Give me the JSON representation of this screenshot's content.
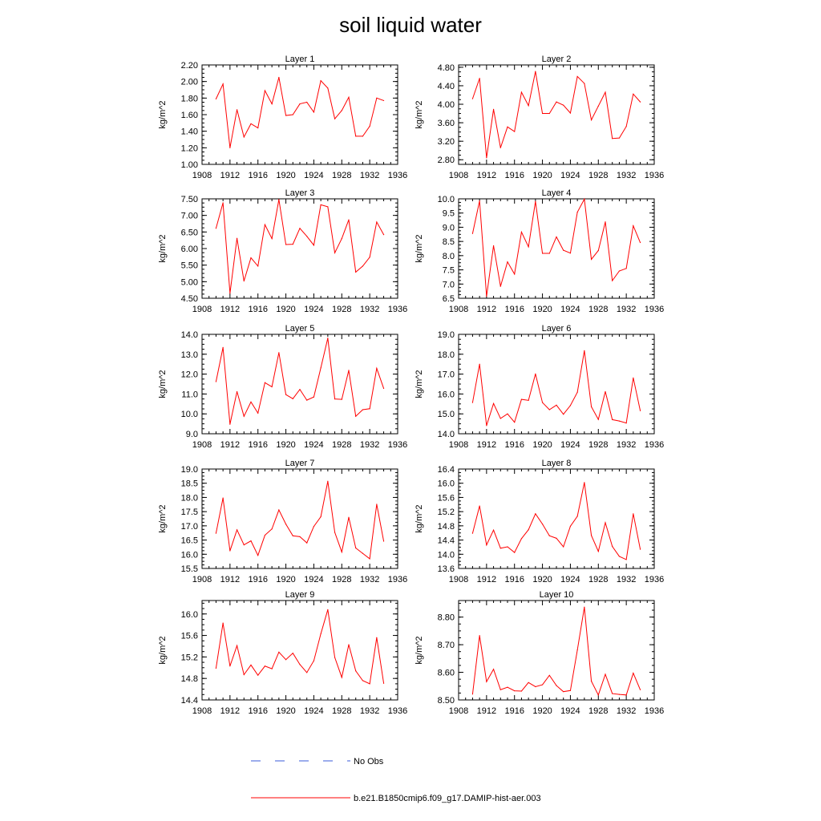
{
  "title": "soil liquid water",
  "legend": [
    {
      "label": "No Obs",
      "color": "#3a5bd9",
      "dash": "12,18"
    },
    {
      "label": "b.e21.B1850cmip6.f09_g17.DAMIP-hist-aer.003",
      "color": "#ff0000",
      "dash": ""
    }
  ],
  "chart_data": [
    {
      "type": "line",
      "title": "Layer 1",
      "xlabel": "",
      "ylabel": "kg/m^2",
      "xlim": [
        1908,
        1936
      ],
      "ylim": [
        1.0,
        2.2
      ],
      "xticks": [
        "1908",
        "1912",
        "1916",
        "1920",
        "1924",
        "1928",
        "1932",
        "1936"
      ],
      "yticks": [
        "1.00",
        "1.20",
        "1.40",
        "1.60",
        "1.80",
        "2.00",
        "2.20"
      ],
      "series": [
        {
          "color": "#ff0000",
          "x": [
            1910,
            1911,
            1912,
            1913,
            1914,
            1915,
            1916,
            1917,
            1918,
            1919,
            1920,
            1921,
            1922,
            1923,
            1924,
            1925,
            1926,
            1927,
            1928,
            1929,
            1930,
            1931,
            1932,
            1933,
            1934
          ],
          "values": [
            1.79,
            1.97,
            1.2,
            1.66,
            1.33,
            1.49,
            1.44,
            1.89,
            1.73,
            2.05,
            1.59,
            1.6,
            1.73,
            1.75,
            1.63,
            2.01,
            1.92,
            1.55,
            1.65,
            1.81,
            1.34,
            1.34,
            1.46,
            1.8,
            1.77
          ]
        }
      ]
    },
    {
      "type": "line",
      "title": "Layer 2",
      "xlabel": "",
      "ylabel": "kg/m^2",
      "xlim": [
        1908,
        1936
      ],
      "ylim": [
        2.7,
        4.85
      ],
      "xticks": [
        "1908",
        "1912",
        "1916",
        "1920",
        "1924",
        "1928",
        "1932",
        "1936"
      ],
      "yticks": [
        "2.80",
        "3.20",
        "3.60",
        "4.00",
        "4.40",
        "4.80"
      ],
      "series": [
        {
          "color": "#ff0000",
          "x": [
            1910,
            1911,
            1912,
            1913,
            1914,
            1915,
            1916,
            1917,
            1918,
            1919,
            1920,
            1921,
            1922,
            1923,
            1924,
            1925,
            1926,
            1927,
            1928,
            1929,
            1930,
            1931,
            1932,
            1933,
            1934
          ],
          "values": [
            4.12,
            4.56,
            2.84,
            3.89,
            3.06,
            3.51,
            3.41,
            4.26,
            3.97,
            4.71,
            3.8,
            3.8,
            4.05,
            3.98,
            3.81,
            4.6,
            4.45,
            3.66,
            3.96,
            4.26,
            3.26,
            3.27,
            3.52,
            4.22,
            4.05
          ]
        }
      ]
    },
    {
      "type": "line",
      "title": "Layer 3",
      "xlabel": "",
      "ylabel": "kg/m^2",
      "xlim": [
        1908,
        1936
      ],
      "ylim": [
        4.5,
        7.5
      ],
      "xticks": [
        "1908",
        "1912",
        "1916",
        "1920",
        "1924",
        "1928",
        "1932",
        "1936"
      ],
      "yticks": [
        "4.50",
        "5.00",
        "5.50",
        "6.00",
        "6.50",
        "7.00",
        "7.50"
      ],
      "series": [
        {
          "color": "#ff0000",
          "x": [
            1910,
            1911,
            1912,
            1913,
            1914,
            1915,
            1916,
            1917,
            1918,
            1919,
            1920,
            1921,
            1922,
            1923,
            1924,
            1925,
            1926,
            1927,
            1928,
            1929,
            1930,
            1931,
            1932,
            1933,
            1934
          ],
          "values": [
            6.61,
            7.38,
            4.65,
            6.31,
            5.02,
            5.72,
            5.47,
            6.72,
            6.3,
            7.48,
            6.12,
            6.13,
            6.61,
            6.37,
            6.1,
            7.32,
            7.26,
            5.87,
            6.3,
            6.87,
            5.29,
            5.47,
            5.74,
            6.8,
            6.42
          ]
        }
      ]
    },
    {
      "type": "line",
      "title": "Layer 4",
      "xlabel": "",
      "ylabel": "kg/m^2",
      "xlim": [
        1908,
        1936
      ],
      "ylim": [
        6.5,
        10.0
      ],
      "xticks": [
        "1908",
        "1912",
        "1916",
        "1920",
        "1924",
        "1928",
        "1932",
        "1936"
      ],
      "yticks": [
        "6.5",
        "7.0",
        "7.5",
        "8.0",
        "8.5",
        "9.0",
        "9.5",
        "10.0"
      ],
      "series": [
        {
          "color": "#ff0000",
          "x": [
            1910,
            1911,
            1912,
            1913,
            1914,
            1915,
            1916,
            1917,
            1918,
            1919,
            1920,
            1921,
            1922,
            1923,
            1924,
            1925,
            1926,
            1927,
            1928,
            1929,
            1930,
            1931,
            1932,
            1933,
            1934
          ],
          "values": [
            8.78,
            9.93,
            6.57,
            8.35,
            6.92,
            7.78,
            7.35,
            8.83,
            8.31,
            9.91,
            8.08,
            8.08,
            8.66,
            8.19,
            8.09,
            9.53,
            9.99,
            7.87,
            8.18,
            9.19,
            7.12,
            7.46,
            7.55,
            9.05,
            8.46
          ]
        }
      ]
    },
    {
      "type": "line",
      "title": "Layer 5",
      "xlabel": "",
      "ylabel": "kg/m^2",
      "xlim": [
        1908,
        1936
      ],
      "ylim": [
        9.0,
        14.0
      ],
      "xticks": [
        "1908",
        "1912",
        "1916",
        "1920",
        "1924",
        "1928",
        "1932",
        "1936"
      ],
      "yticks": [
        "9.0",
        "10.0",
        "11.0",
        "12.0",
        "13.0",
        "14.0"
      ],
      "series": [
        {
          "color": "#ff0000",
          "x": [
            1910,
            1911,
            1912,
            1913,
            1914,
            1915,
            1916,
            1917,
            1918,
            1919,
            1920,
            1921,
            1922,
            1923,
            1924,
            1925,
            1926,
            1927,
            1928,
            1929,
            1930,
            1931,
            1932,
            1933,
            1934
          ],
          "values": [
            11.62,
            13.34,
            9.48,
            11.12,
            9.88,
            10.6,
            10.04,
            11.57,
            11.36,
            13.08,
            10.97,
            10.76,
            11.23,
            10.69,
            10.85,
            12.31,
            13.81,
            10.75,
            10.73,
            12.19,
            9.88,
            10.21,
            10.26,
            12.29,
            11.28
          ]
        }
      ]
    },
    {
      "type": "line",
      "title": "Layer 6",
      "xlabel": "",
      "ylabel": "kg/m^2",
      "xlim": [
        1908,
        1936
      ],
      "ylim": [
        14.0,
        19.0
      ],
      "xticks": [
        "1908",
        "1912",
        "1916",
        "1920",
        "1924",
        "1928",
        "1932",
        "1936"
      ],
      "yticks": [
        "14.0",
        "15.0",
        "16.0",
        "17.0",
        "18.0",
        "19.0"
      ],
      "series": [
        {
          "color": "#ff0000",
          "x": [
            1910,
            1911,
            1912,
            1913,
            1914,
            1915,
            1916,
            1917,
            1918,
            1919,
            1920,
            1921,
            1922,
            1923,
            1924,
            1925,
            1926,
            1927,
            1928,
            1929,
            1930,
            1931,
            1932,
            1933,
            1934
          ],
          "values": [
            15.57,
            17.5,
            14.41,
            15.52,
            14.77,
            15.0,
            14.58,
            15.73,
            15.68,
            17.01,
            15.57,
            15.21,
            15.44,
            14.98,
            15.42,
            16.09,
            18.18,
            15.36,
            14.72,
            16.12,
            14.71,
            14.64,
            14.54,
            16.81,
            15.16
          ]
        }
      ]
    },
    {
      "type": "line",
      "title": "Layer 7",
      "xlabel": "",
      "ylabel": "kg/m^2",
      "xlim": [
        1908,
        1936
      ],
      "ylim": [
        15.5,
        19.0
      ],
      "xticks": [
        "1908",
        "1912",
        "1916",
        "1920",
        "1924",
        "1928",
        "1932",
        "1936"
      ],
      "yticks": [
        "15.5",
        "16.0",
        "16.5",
        "17.0",
        "17.5",
        "18.0",
        "18.5",
        "19.0"
      ],
      "series": [
        {
          "color": "#ff0000",
          "x": [
            1910,
            1911,
            1912,
            1913,
            1914,
            1915,
            1916,
            1917,
            1918,
            1919,
            1920,
            1921,
            1922,
            1923,
            1924,
            1925,
            1926,
            1927,
            1928,
            1929,
            1930,
            1931,
            1932,
            1933,
            1934
          ],
          "values": [
            16.74,
            17.98,
            16.12,
            16.86,
            16.33,
            16.47,
            15.96,
            16.67,
            16.89,
            17.56,
            17.06,
            16.65,
            16.62,
            16.4,
            16.98,
            17.32,
            18.57,
            16.77,
            16.08,
            17.3,
            16.22,
            16.03,
            15.84,
            17.76,
            16.46
          ]
        }
      ]
    },
    {
      "type": "line",
      "title": "Layer 8",
      "xlabel": "",
      "ylabel": "kg/m^2",
      "xlim": [
        1908,
        1936
      ],
      "ylim": [
        13.6,
        16.4
      ],
      "xticks": [
        "1908",
        "1912",
        "1916",
        "1920",
        "1924",
        "1928",
        "1932",
        "1936"
      ],
      "yticks": [
        "13.6",
        "14.0",
        "14.4",
        "14.8",
        "15.2",
        "15.6",
        "16.0",
        "16.4"
      ],
      "series": [
        {
          "color": "#ff0000",
          "x": [
            1910,
            1911,
            1912,
            1913,
            1914,
            1915,
            1916,
            1917,
            1918,
            1919,
            1920,
            1921,
            1922,
            1923,
            1924,
            1925,
            1926,
            1927,
            1928,
            1929,
            1930,
            1931,
            1932,
            1933,
            1934
          ],
          "values": [
            14.59,
            15.36,
            14.26,
            14.68,
            14.17,
            14.21,
            14.05,
            14.44,
            14.69,
            15.14,
            14.85,
            14.52,
            14.45,
            14.21,
            14.79,
            15.07,
            16.02,
            14.53,
            14.08,
            14.89,
            14.22,
            13.94,
            13.85,
            15.14,
            14.14
          ]
        }
      ]
    },
    {
      "type": "line",
      "title": "Layer 9",
      "xlabel": "",
      "ylabel": "kg/m^2",
      "xlim": [
        1908,
        1936
      ],
      "ylim": [
        14.4,
        16.25
      ],
      "xticks": [
        "1908",
        "1912",
        "1916",
        "1920",
        "1924",
        "1928",
        "1932",
        "1936"
      ],
      "yticks": [
        "14.4",
        "14.8",
        "15.2",
        "15.6",
        "16.0"
      ],
      "series": [
        {
          "color": "#ff0000",
          "x": [
            1910,
            1911,
            1912,
            1913,
            1914,
            1915,
            1916,
            1917,
            1918,
            1919,
            1920,
            1921,
            1922,
            1923,
            1924,
            1925,
            1926,
            1927,
            1928,
            1929,
            1930,
            1931,
            1932,
            1933,
            1934
          ],
          "values": [
            14.99,
            15.83,
            15.03,
            15.41,
            14.87,
            15.05,
            14.86,
            15.03,
            14.98,
            15.29,
            15.15,
            15.27,
            15.06,
            14.91,
            15.13,
            15.63,
            16.08,
            15.19,
            14.82,
            15.43,
            14.94,
            14.76,
            14.7,
            15.56,
            14.71
          ]
        }
      ]
    },
    {
      "type": "line",
      "title": "Layer 10",
      "xlabel": "",
      "ylabel": "kg/m^2",
      "xlim": [
        1908,
        1936
      ],
      "ylim": [
        8.5,
        8.86
      ],
      "xticks": [
        "1908",
        "1912",
        "1916",
        "1920",
        "1924",
        "1928",
        "1932",
        "1936"
      ],
      "yticks": [
        "8.50",
        "8.60",
        "8.70",
        "8.80"
      ],
      "series": [
        {
          "color": "#ff0000",
          "x": [
            1910,
            1911,
            1912,
            1913,
            1914,
            1915,
            1916,
            1917,
            1918,
            1919,
            1920,
            1921,
            1922,
            1923,
            1924,
            1925,
            1926,
            1927,
            1928,
            1929,
            1930,
            1931,
            1932,
            1933,
            1934
          ],
          "values": [
            8.521,
            8.733,
            8.566,
            8.611,
            8.537,
            8.546,
            8.533,
            8.532,
            8.563,
            8.548,
            8.555,
            8.589,
            8.552,
            8.53,
            8.534,
            8.681,
            8.836,
            8.568,
            8.518,
            8.593,
            8.523,
            8.52,
            8.518,
            8.597,
            8.537
          ]
        }
      ]
    }
  ]
}
